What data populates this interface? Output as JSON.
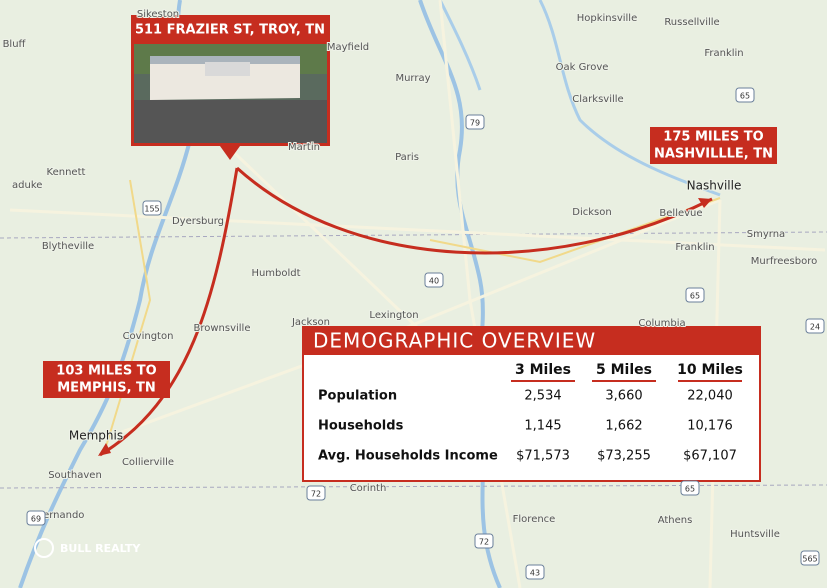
{
  "property": {
    "title": "511 FRAZIER ST, TROY, TN"
  },
  "callouts": [
    {
      "lines": [
        "175 MILES TO",
        "NASHVILLLE, TN"
      ]
    },
    {
      "lines": [
        "103 MILES TO",
        "MEMPHIS, TN"
      ]
    }
  ],
  "map_labels": [
    "Sikeston",
    "Hopkinsville",
    "Russellville",
    "Bluff",
    "Mayfield",
    "Murray",
    "Franklin",
    "Oak Grove",
    "Clarksville",
    "Martin",
    "Paris",
    "Kennett",
    "Nashville",
    "Dyersburg",
    "Dickson",
    "Bellevue",
    "Blytheville",
    "Humboldt",
    "Franklin",
    "Smyrna",
    "Murfreesboro",
    "Jackson",
    "Lexington",
    "Columbia",
    "Covington",
    "Brownsville",
    "Memphis",
    "Collierville",
    "Southaven",
    "Corinth",
    "Hernando",
    "Florence",
    "Athens",
    "Huntsville",
    "aduke"
  ],
  "shields": [
    "155",
    "79",
    "40",
    "65",
    "65",
    "24",
    "72",
    "72",
    "43",
    "69",
    "65",
    "565"
  ],
  "table": {
    "title": "DEMOGRAPHIC OVERVIEW",
    "columns": [
      "3 Miles",
      "5 Miles",
      "10 Miles"
    ],
    "rows": [
      [
        "Population",
        "2,534",
        "3,660",
        "22,040"
      ],
      [
        "Households",
        "1,145",
        "1,662",
        "10,176"
      ],
      [
        "Avg. Households Income",
        "$71,573",
        "$73,255",
        "$67,107"
      ]
    ]
  },
  "logo": "BULL REALTY"
}
